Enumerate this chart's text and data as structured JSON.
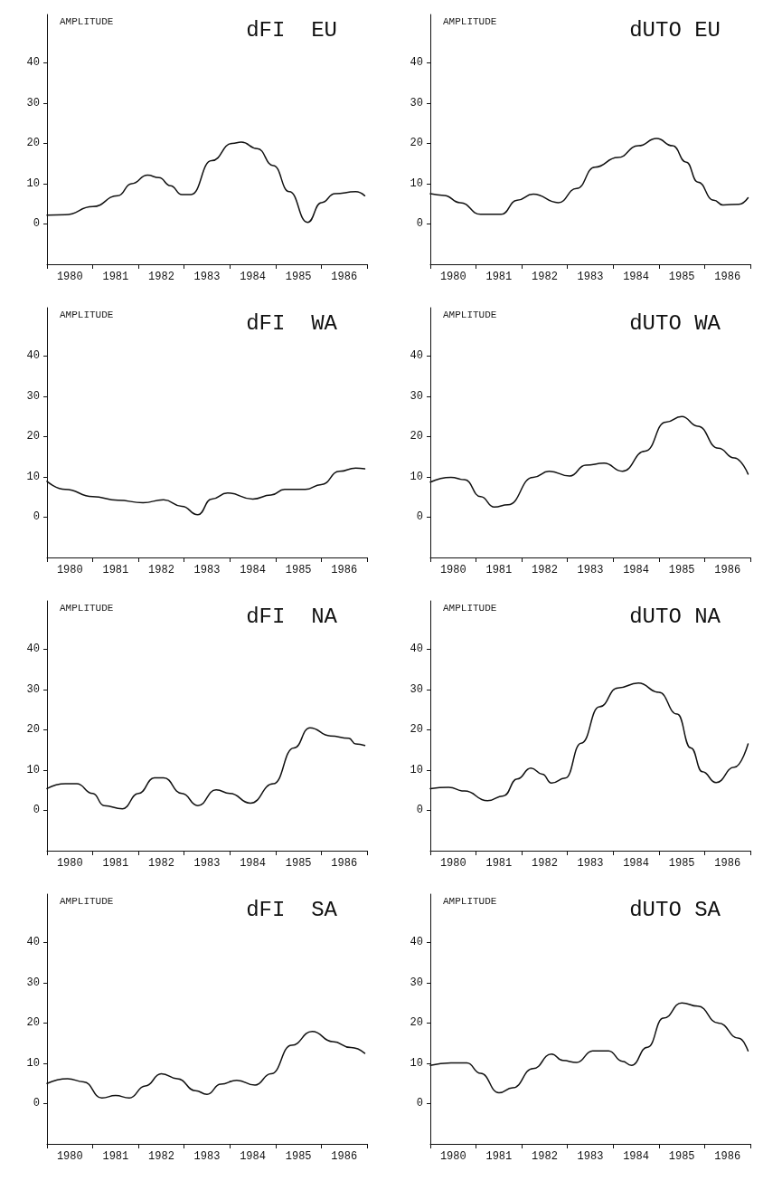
{
  "chart_data": [
    {
      "type": "line",
      "title": "dFI  EU",
      "ylabel": "AMPLITUDE",
      "color": "#111111",
      "xlim": [
        1980,
        1987
      ],
      "ylim": [
        -10,
        52
      ],
      "yticks": [
        0,
        10,
        20,
        30,
        40
      ],
      "xticks": [
        {
          "value": 1980,
          "label": null
        },
        {
          "value": 1980.5,
          "label": "1980"
        },
        {
          "value": 1981,
          "label": null
        },
        {
          "value": 1981.5,
          "label": "1981"
        },
        {
          "value": 1982,
          "label": null
        },
        {
          "value": 1982.5,
          "label": "1982"
        },
        {
          "value": 1983,
          "label": null
        },
        {
          "value": 1983.5,
          "label": "1983"
        },
        {
          "value": 1984,
          "label": null
        },
        {
          "value": 1984.5,
          "label": "1984"
        },
        {
          "value": 1985,
          "label": null
        },
        {
          "value": 1985.5,
          "label": "1985"
        },
        {
          "value": 1986,
          "label": null
        },
        {
          "value": 1986.5,
          "label": "1986"
        },
        {
          "value": 1987,
          "label": null
        }
      ],
      "x": [
        1980,
        1980.4,
        1981,
        1981.55,
        1981.85,
        1982.2,
        1982.45,
        1982.7,
        1982.95,
        1983.15,
        1983.6,
        1984.05,
        1984.25,
        1984.6,
        1984.95,
        1985.3,
        1985.7,
        1986,
        1986.3,
        1986.75,
        1986.95
      ],
      "values": [
        2.2,
        2.3,
        4.3,
        7,
        10,
        12.1,
        11.5,
        9.5,
        7.3,
        7.3,
        15.7,
        20,
        20.3,
        18.7,
        14.5,
        8,
        0.4,
        5.3,
        7.5,
        8,
        7
      ]
    },
    {
      "type": "line",
      "title": "dUTO EU",
      "ylabel": "AMPLITUDE",
      "color": "#111111",
      "xlim": [
        1980,
        1987
      ],
      "ylim": [
        -10,
        52
      ],
      "yticks": [
        0,
        10,
        20,
        30,
        40
      ],
      "xticks": [
        {
          "value": 1980,
          "label": null
        },
        {
          "value": 1980.5,
          "label": "1980"
        },
        {
          "value": 1981,
          "label": null
        },
        {
          "value": 1981.5,
          "label": "1981"
        },
        {
          "value": 1982,
          "label": null
        },
        {
          "value": 1982.5,
          "label": "1982"
        },
        {
          "value": 1983,
          "label": null
        },
        {
          "value": 1983.5,
          "label": "1983"
        },
        {
          "value": 1984,
          "label": null
        },
        {
          "value": 1984.5,
          "label": "1984"
        },
        {
          "value": 1985,
          "label": null
        },
        {
          "value": 1985.5,
          "label": "1985"
        },
        {
          "value": 1986,
          "label": null
        },
        {
          "value": 1986.5,
          "label": "1986"
        },
        {
          "value": 1987,
          "label": null
        }
      ],
      "x": [
        1980,
        1980.3,
        1980.65,
        1981.1,
        1981.55,
        1981.9,
        1982.25,
        1982.8,
        1983.2,
        1983.6,
        1984.1,
        1984.55,
        1984.95,
        1985.3,
        1985.6,
        1985.85,
        1986.2,
        1986.4,
        1986.75,
        1986.95
      ],
      "values": [
        7.5,
        7.1,
        5.3,
        2.4,
        2.4,
        5.9,
        7.4,
        5.3,
        8.8,
        14.1,
        16.5,
        19.4,
        21.2,
        19.4,
        15.3,
        10.4,
        5.9,
        4.7,
        4.9,
        6.5
      ]
    },
    {
      "type": "line",
      "title": "dFI  WA",
      "ylabel": "AMPLITUDE",
      "color": "#111111",
      "xlim": [
        1980,
        1987
      ],
      "ylim": [
        -10,
        52
      ],
      "yticks": [
        0,
        10,
        20,
        30,
        40
      ],
      "xticks": [
        {
          "value": 1980,
          "label": null
        },
        {
          "value": 1980.5,
          "label": "1980"
        },
        {
          "value": 1981,
          "label": null
        },
        {
          "value": 1981.5,
          "label": "1981"
        },
        {
          "value": 1982,
          "label": null
        },
        {
          "value": 1982.5,
          "label": "1982"
        },
        {
          "value": 1983,
          "label": null
        },
        {
          "value": 1983.5,
          "label": "1983"
        },
        {
          "value": 1984,
          "label": null
        },
        {
          "value": 1984.5,
          "label": "1984"
        },
        {
          "value": 1985,
          "label": null
        },
        {
          "value": 1985.5,
          "label": "1985"
        },
        {
          "value": 1986,
          "label": null
        },
        {
          "value": 1986.5,
          "label": "1986"
        },
        {
          "value": 1987,
          "label": null
        }
      ],
      "x": [
        1980,
        1980.4,
        1981,
        1981.55,
        1982.1,
        1982.55,
        1982.95,
        1983.3,
        1983.6,
        1983.95,
        1984.5,
        1984.9,
        1985.2,
        1985.65,
        1986,
        1986.4,
        1986.75,
        1986.95
      ],
      "values": [
        8.9,
        6.9,
        5.1,
        4.2,
        3.6,
        4.3,
        2.7,
        0.6,
        4.5,
        6,
        4.5,
        5.5,
        6.9,
        6.9,
        8.1,
        11.4,
        12.2,
        12
      ]
    },
    {
      "type": "line",
      "title": "dUTO WA",
      "ylabel": "AMPLITUDE",
      "color": "#111111",
      "xlim": [
        1980,
        1987
      ],
      "ylim": [
        -10,
        52
      ],
      "yticks": [
        0,
        10,
        20,
        30,
        40
      ],
      "xticks": [
        {
          "value": 1980,
          "label": null
        },
        {
          "value": 1980.5,
          "label": "1980"
        },
        {
          "value": 1981,
          "label": null
        },
        {
          "value": 1981.5,
          "label": "1981"
        },
        {
          "value": 1982,
          "label": null
        },
        {
          "value": 1982.5,
          "label": "1982"
        },
        {
          "value": 1983,
          "label": null
        },
        {
          "value": 1983.5,
          "label": "1983"
        },
        {
          "value": 1984,
          "label": null
        },
        {
          "value": 1984.5,
          "label": "1984"
        },
        {
          "value": 1985,
          "label": null
        },
        {
          "value": 1985.5,
          "label": "1985"
        },
        {
          "value": 1986,
          "label": null
        },
        {
          "value": 1986.5,
          "label": "1986"
        },
        {
          "value": 1987,
          "label": null
        }
      ],
      "x": [
        1980,
        1980.45,
        1980.75,
        1981.1,
        1981.4,
        1981.7,
        1982.25,
        1982.6,
        1983.05,
        1983.4,
        1983.8,
        1984.2,
        1984.7,
        1985.15,
        1985.5,
        1985.85,
        1986.3,
        1986.65,
        1986.95
      ],
      "values": [
        8.7,
        9.9,
        9.3,
        5.1,
        2.5,
        3.1,
        9.9,
        11.4,
        10.2,
        12.9,
        13.4,
        11.4,
        16.4,
        23.6,
        25,
        22.6,
        17.1,
        14.7,
        10.7
      ]
    },
    {
      "type": "line",
      "title": "dFI  NA",
      "ylabel": "AMPLITUDE",
      "color": "#111111",
      "xlim": [
        1980,
        1987
      ],
      "ylim": [
        -10,
        52
      ],
      "yticks": [
        0,
        10,
        20,
        30,
        40
      ],
      "xticks": [
        {
          "value": 1980,
          "label": null
        },
        {
          "value": 1980.5,
          "label": "1980"
        },
        {
          "value": 1981,
          "label": null
        },
        {
          "value": 1981.5,
          "label": "1981"
        },
        {
          "value": 1982,
          "label": null
        },
        {
          "value": 1982.5,
          "label": "1982"
        },
        {
          "value": 1983,
          "label": null
        },
        {
          "value": 1983.5,
          "label": "1983"
        },
        {
          "value": 1984,
          "label": null
        },
        {
          "value": 1984.5,
          "label": "1984"
        },
        {
          "value": 1985,
          "label": null
        },
        {
          "value": 1985.5,
          "label": "1985"
        },
        {
          "value": 1986,
          "label": null
        },
        {
          "value": 1986.5,
          "label": "1986"
        },
        {
          "value": 1987,
          "label": null
        }
      ],
      "x": [
        1980,
        1980.4,
        1980.65,
        1981,
        1981.25,
        1981.65,
        1982,
        1982.35,
        1982.55,
        1982.95,
        1983.3,
        1983.7,
        1984,
        1984.45,
        1984.95,
        1985.4,
        1985.75,
        1986.2,
        1986.6,
        1986.75,
        1986.95
      ],
      "values": [
        5.4,
        6.6,
        6.6,
        4.2,
        1.2,
        0.4,
        4.2,
        8.1,
        8.1,
        4.2,
        1.2,
        5.1,
        4.2,
        1.8,
        6.6,
        15.5,
        20.5,
        18.5,
        17.9,
        16.5,
        16.1
      ]
    },
    {
      "type": "line",
      "title": "dUTO NA",
      "ylabel": "AMPLITUDE",
      "color": "#111111",
      "xlim": [
        1980,
        1987
      ],
      "ylim": [
        -10,
        52
      ],
      "yticks": [
        0,
        10,
        20,
        30,
        40
      ],
      "xticks": [
        {
          "value": 1980,
          "label": null
        },
        {
          "value": 1980.5,
          "label": "1980"
        },
        {
          "value": 1981,
          "label": null
        },
        {
          "value": 1981.5,
          "label": "1981"
        },
        {
          "value": 1982,
          "label": null
        },
        {
          "value": 1982.5,
          "label": "1982"
        },
        {
          "value": 1983,
          "label": null
        },
        {
          "value": 1983.5,
          "label": "1983"
        },
        {
          "value": 1984,
          "label": null
        },
        {
          "value": 1984.5,
          "label": "1984"
        },
        {
          "value": 1985,
          "label": null
        },
        {
          "value": 1985.5,
          "label": "1985"
        },
        {
          "value": 1986,
          "label": null
        },
        {
          "value": 1986.5,
          "label": "1986"
        },
        {
          "value": 1987,
          "label": null
        }
      ],
      "x": [
        1980,
        1980.4,
        1980.75,
        1981.25,
        1981.6,
        1981.9,
        1982.2,
        1982.45,
        1982.65,
        1982.95,
        1983.3,
        1983.7,
        1984.1,
        1984.55,
        1985,
        1985.4,
        1985.7,
        1985.95,
        1986.25,
        1986.65,
        1986.95
      ],
      "values": [
        5.4,
        5.7,
        4.8,
        2.4,
        3.6,
        7.8,
        10.5,
        9,
        6.8,
        8,
        16.7,
        25.7,
        30.4,
        31.6,
        29.3,
        23.9,
        15.5,
        9.6,
        6.9,
        10.7,
        16.5
      ]
    },
    {
      "type": "line",
      "title": "dFI  SA",
      "ylabel": "AMPLITUDE",
      "color": "#111111",
      "xlim": [
        1980,
        1987
      ],
      "ylim": [
        -10,
        52
      ],
      "yticks": [
        0,
        10,
        20,
        30,
        40
      ],
      "xticks": [
        {
          "value": 1980,
          "label": null
        },
        {
          "value": 1980.5,
          "label": "1980"
        },
        {
          "value": 1981,
          "label": null
        },
        {
          "value": 1981.5,
          "label": "1981"
        },
        {
          "value": 1982,
          "label": null
        },
        {
          "value": 1982.5,
          "label": "1982"
        },
        {
          "value": 1983,
          "label": null
        },
        {
          "value": 1983.5,
          "label": "1983"
        },
        {
          "value": 1984,
          "label": null
        },
        {
          "value": 1984.5,
          "label": "1984"
        },
        {
          "value": 1985,
          "label": null
        },
        {
          "value": 1985.5,
          "label": "1985"
        },
        {
          "value": 1986,
          "label": null
        },
        {
          "value": 1986.5,
          "label": "1986"
        },
        {
          "value": 1987,
          "label": null
        }
      ],
      "x": [
        1980,
        1980.45,
        1980.8,
        1981.2,
        1981.5,
        1981.8,
        1982.15,
        1982.5,
        1982.85,
        1983.25,
        1983.5,
        1983.8,
        1984.15,
        1984.55,
        1984.9,
        1985.35,
        1985.8,
        1986.25,
        1986.65,
        1986.95
      ],
      "values": [
        5,
        6.2,
        5.4,
        1.4,
        2,
        1.4,
        4.4,
        7.4,
        6.2,
        3.2,
        2.3,
        4.8,
        5.8,
        4.6,
        7.4,
        14.5,
        17.9,
        15.4,
        13.9,
        12.5
      ]
    },
    {
      "type": "line",
      "title": "dUTO SA",
      "ylabel": "AMPLITUDE",
      "color": "#111111",
      "xlim": [
        1980,
        1987
      ],
      "ylim": [
        -10,
        52
      ],
      "yticks": [
        0,
        10,
        20,
        30,
        40
      ],
      "xticks": [
        {
          "value": 1980,
          "label": null
        },
        {
          "value": 1980.5,
          "label": "1980"
        },
        {
          "value": 1981,
          "label": null
        },
        {
          "value": 1981.5,
          "label": "1981"
        },
        {
          "value": 1982,
          "label": null
        },
        {
          "value": 1982.5,
          "label": "1982"
        },
        {
          "value": 1983,
          "label": null
        },
        {
          "value": 1983.5,
          "label": "1983"
        },
        {
          "value": 1984,
          "label": null
        },
        {
          "value": 1984.5,
          "label": "1984"
        },
        {
          "value": 1985,
          "label": null
        },
        {
          "value": 1985.5,
          "label": "1985"
        },
        {
          "value": 1986,
          "label": null
        },
        {
          "value": 1986.5,
          "label": "1986"
        },
        {
          "value": 1987,
          "label": null
        }
      ],
      "x": [
        1980,
        1980.45,
        1980.8,
        1981.1,
        1981.5,
        1981.8,
        1982.25,
        1982.65,
        1982.9,
        1983.2,
        1983.55,
        1983.9,
        1984.2,
        1984.4,
        1984.75,
        1985.1,
        1985.5,
        1985.85,
        1986.3,
        1986.75,
        1986.95
      ],
      "values": [
        9.5,
        10.1,
        10.1,
        7.5,
        2.7,
        3.9,
        8.7,
        12.3,
        10.7,
        10.2,
        13.1,
        13.1,
        10.5,
        9.5,
        14,
        21.2,
        25,
        24.2,
        20,
        16.2,
        13.1
      ]
    }
  ]
}
